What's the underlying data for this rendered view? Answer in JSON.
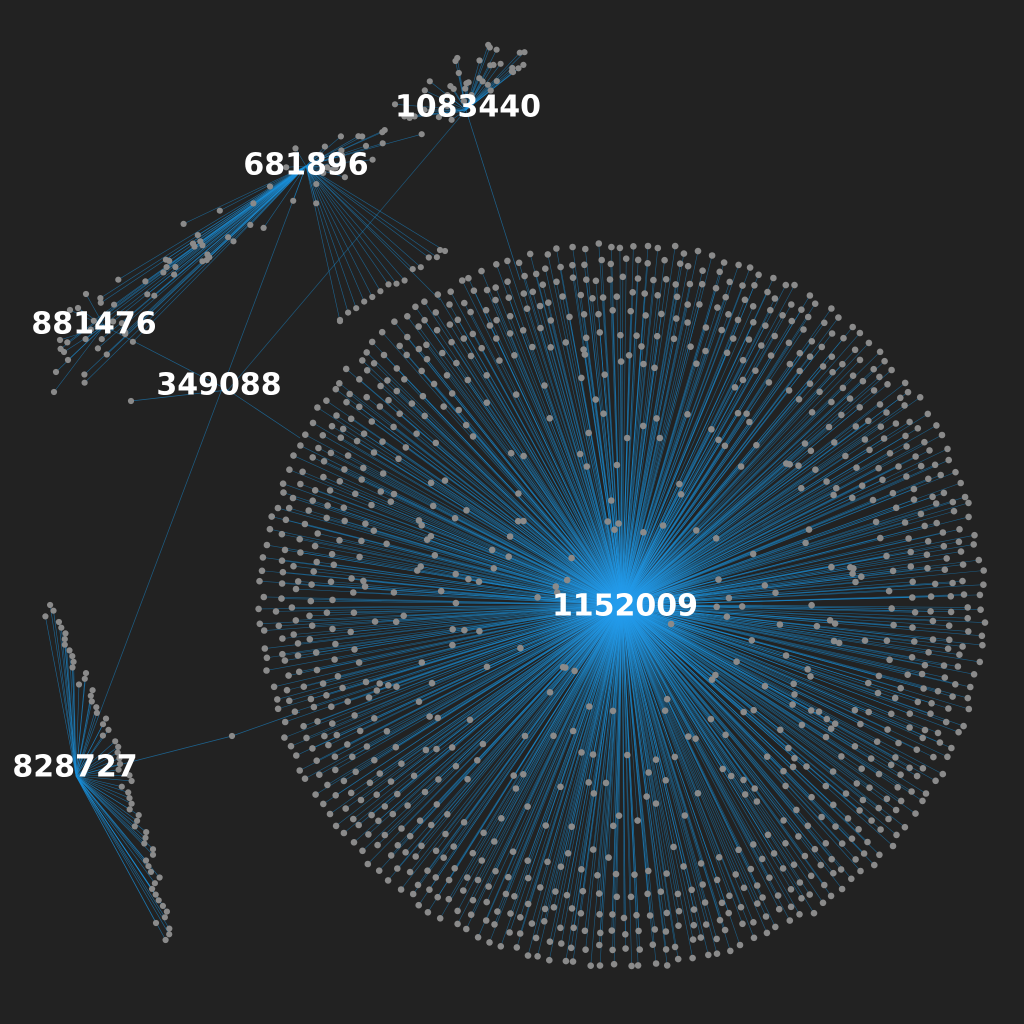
{
  "colors": {
    "background": "#222222",
    "edge": "#1a8fd8",
    "edge_glow": "#33aaff",
    "node": "#8a8a8a",
    "label": "#ffffff"
  },
  "graph": {
    "type": "network",
    "hubs": [
      {
        "id": "hub-1152009",
        "label": "1152009"
      },
      {
        "id": "hub-681896",
        "label": "681896"
      },
      {
        "id": "hub-1083440",
        "label": "1083440"
      },
      {
        "id": "hub-881476",
        "label": "881476"
      },
      {
        "id": "hub-349088",
        "label": "349088"
      },
      {
        "id": "hub-828727",
        "label": "828727"
      }
    ]
  }
}
